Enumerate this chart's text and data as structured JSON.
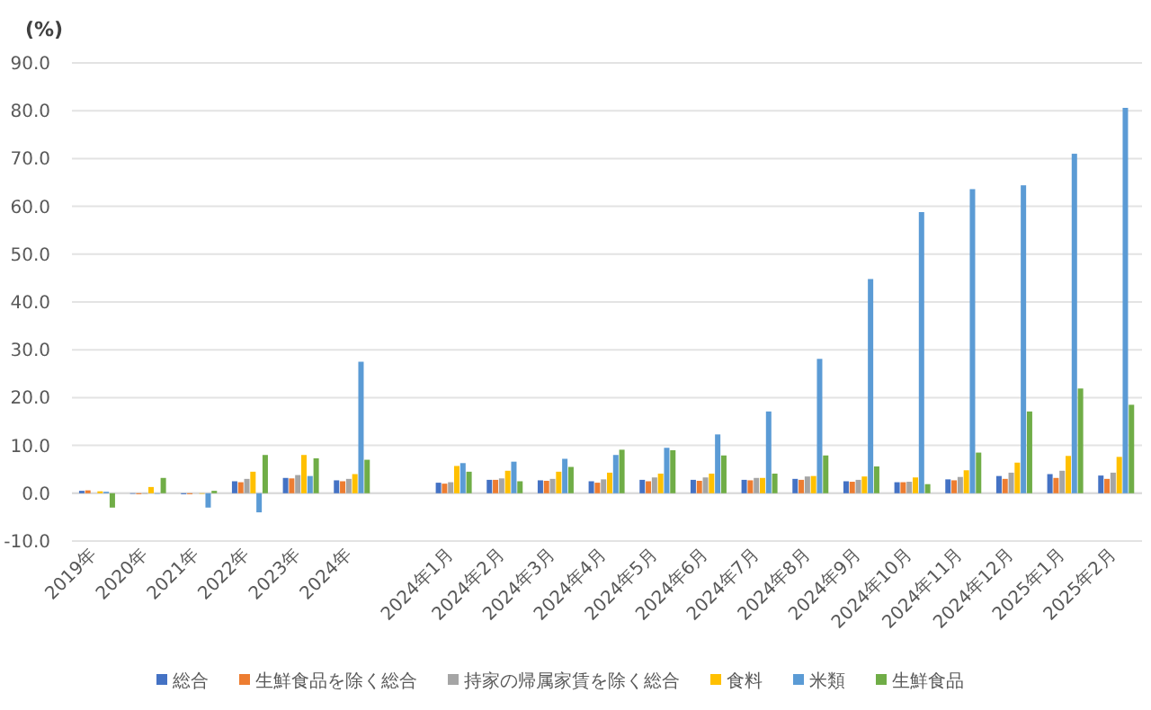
{
  "chart_data": {
    "type": "bar",
    "ylabel": "(%)",
    "categories": [
      "2019年",
      "2020年",
      "2021年",
      "2022年",
      "2023年",
      "2024年",
      null,
      "2024年1月",
      "2024年2月",
      "2024年3月",
      "2024年4月",
      "2024年5月",
      "2024年6月",
      "2024年7月",
      "2024年8月",
      "2024年9月",
      "2024年10月",
      "2024年11月",
      "2024年12月",
      "2025年1月",
      "2025年2月"
    ],
    "series": [
      {
        "name": "総合",
        "color": "#4472c4",
        "values": [
          0.5,
          0.0,
          -0.2,
          2.5,
          3.2,
          2.7,
          null,
          2.2,
          2.8,
          2.7,
          2.5,
          2.8,
          2.8,
          2.8,
          3.0,
          2.5,
          2.3,
          2.9,
          3.6,
          4.0,
          3.7
        ]
      },
      {
        "name": "生鮮食品を除く総合",
        "color": "#ed7d31",
        "values": [
          0.6,
          -0.2,
          -0.2,
          2.3,
          3.1,
          2.5,
          null,
          2.0,
          2.8,
          2.6,
          2.2,
          2.5,
          2.6,
          2.7,
          2.8,
          2.4,
          2.3,
          2.7,
          3.0,
          3.2,
          3.0
        ]
      },
      {
        "name": "持家の帰属家賃を除く総合",
        "color": "#a5a5a5",
        "values": [
          null,
          0.0,
          null,
          3.0,
          3.8,
          3.0,
          null,
          2.3,
          3.1,
          3.0,
          2.9,
          3.3,
          3.3,
          3.2,
          3.5,
          2.8,
          2.4,
          3.4,
          4.3,
          4.7,
          4.3
        ]
      },
      {
        "name": "食料",
        "color": "#ffc000",
        "values": [
          0.4,
          1.3,
          0.0,
          4.5,
          8.0,
          4.0,
          null,
          5.7,
          4.7,
          4.5,
          4.3,
          4.1,
          4.1,
          3.2,
          3.6,
          3.5,
          3.3,
          4.8,
          6.4,
          7.8,
          7.6
        ]
      },
      {
        "name": "米類",
        "color": "#5b9bd5",
        "values": [
          0.3,
          0.0,
          -3.0,
          -4.0,
          3.6,
          27.5,
          null,
          6.3,
          6.6,
          7.2,
          8.0,
          9.5,
          12.3,
          17.1,
          28.1,
          44.8,
          58.8,
          63.6,
          64.4,
          71.0,
          80.6
        ]
      },
      {
        "name": "生鮮食品",
        "color": "#70ad47",
        "values": [
          -3.0,
          3.2,
          0.5,
          8.0,
          7.3,
          7.0,
          null,
          4.5,
          2.5,
          5.5,
          9.1,
          9.0,
          7.9,
          4.1,
          7.9,
          5.6,
          1.9,
          8.5,
          17.1,
          21.9,
          18.5
        ]
      }
    ],
    "ylim": [
      -10,
      90
    ],
    "yticks": [
      {
        "value": -10,
        "label": "-10.0"
      },
      {
        "value": 0,
        "label": "0.0"
      },
      {
        "value": 10,
        "label": "10.0"
      },
      {
        "value": 20,
        "label": "20.0"
      },
      {
        "value": 30,
        "label": "30.0"
      },
      {
        "value": 40,
        "label": "40.0"
      },
      {
        "value": 50,
        "label": "50.0"
      },
      {
        "value": 60,
        "label": "60.0"
      },
      {
        "value": 70,
        "label": "70.0"
      },
      {
        "value": 80,
        "label": "80.0"
      },
      {
        "value": 90,
        "label": "90.0"
      }
    ],
    "grid": "y",
    "legend": "bottom"
  }
}
